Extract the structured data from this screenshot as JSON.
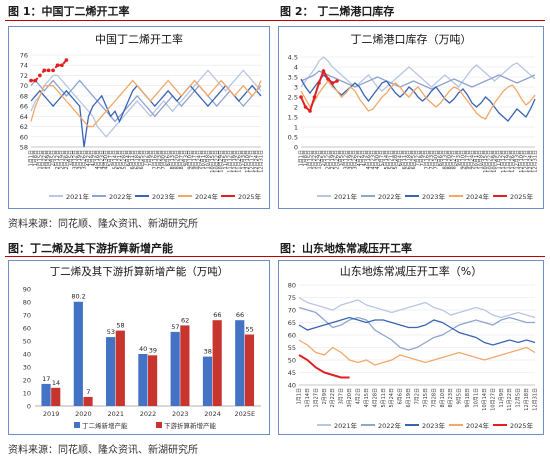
{
  "figures": [
    {
      "label": "图 1：中国丁二烯开工率"
    },
    {
      "label": "图 2：  丁二烯港口库存"
    },
    {
      "label": "图：丁二烯及其下游折算新增产能"
    },
    {
      "label": "图：山东地炼常减压开工率"
    }
  ],
  "sources": [
    "资料来源：同花顺、隆众资讯、新湖研究所",
    "资料来源：同花顺、隆众资讯、新湖研究所"
  ],
  "colors": {
    "y2021": "#b9c6e2",
    "y2022": "#8ea4cf",
    "y2023": "#3a64b3",
    "y2024": "#f1a86a",
    "y2025": "#e02020",
    "bar1": "#4472c4",
    "bar2": "#c8352f",
    "frame": "#6d8fc4",
    "divider": "#c00000"
  },
  "chart_data": [
    {
      "type": "line",
      "title": "中国丁二烯开工率",
      "ylim": [
        58,
        76
      ],
      "yticks": [
        "58",
        "60",
        "62",
        "64",
        "66",
        "68",
        "70",
        "72",
        "74",
        "76"
      ],
      "x_ticks": [
        "1月1日",
        "1月8日",
        "1月15日",
        "1月22日",
        "1月29日",
        "2月5日",
        "2月12日",
        "2月19日",
        "2月26日",
        "3月5日",
        "3月12日",
        "3月19日",
        "3月26日",
        "4月2日",
        "4月9日",
        "4月16日",
        "4月23日",
        "4月30日",
        "5月7日",
        "5月14日",
        "5月21日",
        "5月28日",
        "6月4日",
        "6月11日",
        "6月18日",
        "6月25日",
        "7月2日",
        "7月9日",
        "7月16日",
        "7月23日",
        "7月30日",
        "8月6日",
        "8月13日",
        "8月20日",
        "8月27日",
        "9月3日",
        "9月10日",
        "9月17日",
        "9月24日",
        "10月1日",
        "10月8日",
        "10月15日",
        "10月22日",
        "10月29日",
        "11月5日",
        "11月12日",
        "11月19日",
        "11月26日",
        "12月3日",
        "12月10日",
        "12月17日",
        "12月24日",
        "12月31日"
      ],
      "series": [
        {
          "name": "2021年",
          "values": [
            65,
            67,
            68,
            70,
            71,
            72,
            72,
            71,
            70,
            69,
            68,
            67,
            66,
            65,
            64,
            62,
            61,
            60,
            61,
            62,
            63,
            64,
            65,
            66,
            67,
            66,
            65,
            64,
            65,
            66,
            67,
            66,
            65,
            66,
            67,
            68,
            69,
            70,
            71,
            72,
            73,
            72,
            71,
            70,
            69,
            70,
            71,
            72,
            73,
            72,
            71,
            70,
            69
          ]
        },
        {
          "name": "2022年",
          "values": [
            70,
            71,
            70,
            69,
            70,
            71,
            70,
            69,
            68,
            69,
            70,
            71,
            70,
            69,
            68,
            67,
            66,
            65,
            64,
            63,
            64,
            65,
            66,
            67,
            68,
            67,
            66,
            65,
            64,
            65,
            66,
            67,
            68,
            67,
            66,
            67,
            68,
            69,
            70,
            69,
            68,
            67,
            66,
            67,
            68,
            69,
            68,
            67,
            66,
            67,
            68,
            69,
            70
          ]
        },
        {
          "name": "2023年",
          "values": [
            67,
            68,
            69,
            68,
            67,
            66,
            67,
            68,
            69,
            68,
            67,
            66,
            58,
            64,
            66,
            67,
            68,
            66,
            64,
            65,
            63,
            65,
            67,
            69,
            70,
            69,
            68,
            67,
            66,
            67,
            68,
            69,
            68,
            67,
            68,
            69,
            70,
            69,
            68,
            67,
            66,
            67,
            68,
            69,
            70,
            69,
            68,
            67,
            68,
            69,
            70,
            69,
            68
          ]
        },
        {
          "name": "2024年",
          "values": [
            63,
            66,
            68,
            70,
            70,
            70,
            69,
            68,
            67,
            66,
            65,
            64,
            63,
            62,
            62,
            63,
            64,
            65,
            66,
            67,
            68,
            69,
            70,
            71,
            70,
            69,
            68,
            67,
            68,
            69,
            70,
            71,
            70,
            69,
            68,
            69,
            70,
            71,
            70,
            69,
            68,
            69,
            70,
            71,
            70,
            69,
            68,
            69,
            70,
            69,
            68,
            69,
            71
          ]
        },
        {
          "name": "2025年",
          "values": [
            71,
            71,
            72,
            73,
            73,
            73,
            74,
            74,
            75
          ]
        }
      ],
      "legend": "bottom"
    },
    {
      "type": "line",
      "title": "丁二烯港口库存（万吨）",
      "ylim": [
        0,
        4.5
      ],
      "yticks": [
        "0",
        "0.5",
        "1",
        "1.5",
        "2",
        "2.5",
        "3",
        "3.5",
        "4",
        "4.5"
      ],
      "x_ticks": [
        "1月1日",
        "1月8日",
        "1月15日",
        "1月22日",
        "1月29日",
        "2月5日",
        "2月12日",
        "2月19日",
        "2月26日",
        "3月5日",
        "3月12日",
        "3月19日",
        "3月26日",
        "4月2日",
        "4月9日",
        "4月16日",
        "4月23日",
        "4月30日",
        "5月7日",
        "5月14日",
        "5月21日",
        "5月28日",
        "6月4日",
        "6月11日",
        "6月18日",
        "6月25日",
        "7月2日",
        "7月9日",
        "7月16日",
        "7月23日",
        "7月30日",
        "8月6日",
        "8月13日",
        "8月20日",
        "8月27日",
        "9月3日",
        "9月10日",
        "9月17日",
        "9月24日",
        "10月1日",
        "10月8日",
        "10月15日",
        "10月22日",
        "10月29日",
        "11月5日",
        "11月12日",
        "11月19日",
        "11月26日",
        "12月3日",
        "12月10日",
        "12月17日",
        "12月24日",
        "12月31日"
      ],
      "series": [
        {
          "name": "2021年",
          "values": [
            3.0,
            3.3,
            3.6,
            3.9,
            4.3,
            4.5,
            4.3,
            4.0,
            3.8,
            3.6,
            3.4,
            3.2,
            3.0,
            3.2,
            3.4,
            3.6,
            3.3,
            3.0,
            2.8,
            3.0,
            3.2,
            3.4,
            3.6,
            3.8,
            4.0,
            3.8,
            3.6,
            3.4,
            3.2,
            3.0,
            3.2,
            3.4,
            3.6,
            3.4,
            3.2,
            3.0,
            3.3,
            3.6,
            3.9,
            4.1,
            3.9,
            3.7,
            3.5,
            3.3,
            3.5,
            3.7,
            3.9,
            4.1,
            4.2,
            4.0,
            3.8,
            3.6,
            3.4
          ]
        },
        {
          "name": "2022年",
          "values": [
            3.3,
            3.4,
            3.5,
            3.6,
            3.8,
            3.7,
            3.6,
            3.5,
            3.4,
            3.3,
            3.2,
            3.1,
            3.0,
            3.1,
            3.2,
            3.3,
            3.4,
            3.5,
            3.4,
            3.3,
            3.2,
            3.1,
            3.0,
            3.1,
            3.2,
            3.3,
            3.2,
            3.1,
            3.0,
            2.9,
            3.0,
            3.1,
            3.2,
            3.3,
            3.4,
            3.3,
            3.2,
            3.1,
            3.0,
            3.1,
            3.2,
            3.3,
            3.4,
            3.5,
            3.6,
            3.5,
            3.4,
            3.3,
            3.2,
            3.3,
            3.4,
            3.5,
            3.6
          ]
        },
        {
          "name": "2023年",
          "values": [
            3.4,
            3.0,
            2.7,
            3.0,
            3.3,
            3.6,
            3.4,
            3.1,
            2.8,
            2.6,
            2.8,
            3.0,
            3.2,
            3.0,
            2.6,
            2.3,
            2.6,
            2.9,
            3.2,
            3.3,
            3.0,
            2.7,
            2.5,
            2.7,
            3.0,
            2.8,
            2.5,
            2.3,
            2.5,
            2.8,
            3.0,
            2.7,
            2.4,
            2.2,
            2.4,
            2.7,
            2.9,
            2.6,
            2.2,
            2.0,
            2.2,
            2.5,
            2.3,
            2.0,
            1.7,
            1.5,
            1.3,
            1.6,
            1.9,
            1.7,
            1.5,
            1.9,
            2.4
          ]
        },
        {
          "name": "2024年",
          "values": [
            2.8,
            2.4,
            2.0,
            2.3,
            2.7,
            3.0,
            3.3,
            3.0,
            2.8,
            2.5,
            2.7,
            3.0,
            2.8,
            2.4,
            2.1,
            1.8,
            1.9,
            2.2,
            2.5,
            2.7,
            3.0,
            3.2,
            3.0,
            2.7,
            2.5,
            2.8,
            3.0,
            2.7,
            2.4,
            2.2,
            2.0,
            2.2,
            2.5,
            2.8,
            3.0,
            2.9,
            2.6,
            2.3,
            2.0,
            1.7,
            1.5,
            1.4,
            1.8,
            2.2,
            2.5,
            2.8,
            3.0,
            3.1,
            2.8,
            2.4,
            2.1,
            2.3,
            2.6
          ]
        },
        {
          "name": "2025年",
          "values": [
            2.5,
            2.0,
            1.8,
            2.5,
            3.2,
            3.8,
            3.4,
            3.2,
            3.3
          ]
        }
      ],
      "legend": "bottom"
    },
    {
      "type": "bar",
      "title": "丁二烯及其下游折算新增产能（万吨）",
      "categories": [
        "2019",
        "2020",
        "2021",
        "2022",
        "2023",
        "2024",
        "2025E"
      ],
      "ylim": [
        0,
        90
      ],
      "yticks": [
        "0",
        "10",
        "20",
        "30",
        "40",
        "50",
        "60",
        "70",
        "80",
        "90"
      ],
      "series": [
        {
          "name": "丁二烯新增产能",
          "values": [
            17,
            80.2,
            53,
            40,
            57,
            38,
            66
          ],
          "labels": [
            "17",
            "80.2",
            "53",
            "40",
            "57",
            "38",
            "66"
          ]
        },
        {
          "name": "下游折算新增产能",
          "values": [
            14,
            7,
            58,
            39,
            62,
            66,
            55
          ],
          "labels": [
            "14",
            "7",
            "58",
            "39",
            "62",
            "66",
            "55"
          ]
        }
      ],
      "legend": "bottom"
    },
    {
      "type": "line",
      "title": "山东地炼常减压开工率（%）",
      "ylim": [
        40,
        80
      ],
      "yticks": [
        "40",
        "45",
        "50",
        "55",
        "60",
        "65",
        "70",
        "75",
        "80"
      ],
      "x_ticks": [
        "1月1日",
        "1月14日",
        "1月27日",
        "2月9日",
        "2月22日",
        "3月7日",
        "3月20日",
        "4月2日",
        "4月15日",
        "4月28日",
        "5月11日",
        "5月24日",
        "6月6日",
        "6月19日",
        "7月2日",
        "7月15日",
        "7月28日",
        "8月10日",
        "8月23日",
        "9月5日",
        "9月18日",
        "10月1日",
        "10月14日",
        "10月27日",
        "11月9日",
        "11月22日",
        "12月5日",
        "12月18日",
        "12月31日"
      ],
      "series": [
        {
          "name": "2021年",
          "values": [
            75,
            73,
            72,
            71,
            70,
            72,
            73,
            74,
            72,
            71,
            70,
            69,
            70,
            71,
            72,
            73,
            71,
            70,
            68,
            69,
            70,
            71,
            70,
            68,
            67,
            68,
            69,
            68,
            67
          ]
        },
        {
          "name": "2022年",
          "values": [
            71,
            70,
            69,
            66,
            63,
            64,
            66,
            67,
            66,
            62,
            60,
            58,
            55,
            54,
            55,
            57,
            59,
            60,
            62,
            64,
            65,
            66,
            65,
            64,
            66,
            67,
            66,
            65,
            65
          ]
        },
        {
          "name": "2023年",
          "values": [
            64,
            62,
            63,
            64,
            65,
            66,
            67,
            66,
            65,
            66,
            66,
            65,
            64,
            63,
            63,
            64,
            66,
            65,
            63,
            61,
            60,
            59,
            57,
            56,
            57,
            58,
            57,
            58,
            57
          ]
        },
        {
          "name": "2024年",
          "values": [
            58,
            56,
            53,
            52,
            55,
            53,
            50,
            49,
            50,
            48,
            49,
            50,
            52,
            51,
            50,
            49,
            50,
            51,
            52,
            53,
            52,
            51,
            50,
            51,
            52,
            53,
            54,
            55,
            53
          ]
        },
        {
          "name": "2025年",
          "values": [
            52,
            50,
            47,
            45,
            44,
            43,
            43
          ]
        }
      ],
      "legend": "bottom"
    }
  ]
}
